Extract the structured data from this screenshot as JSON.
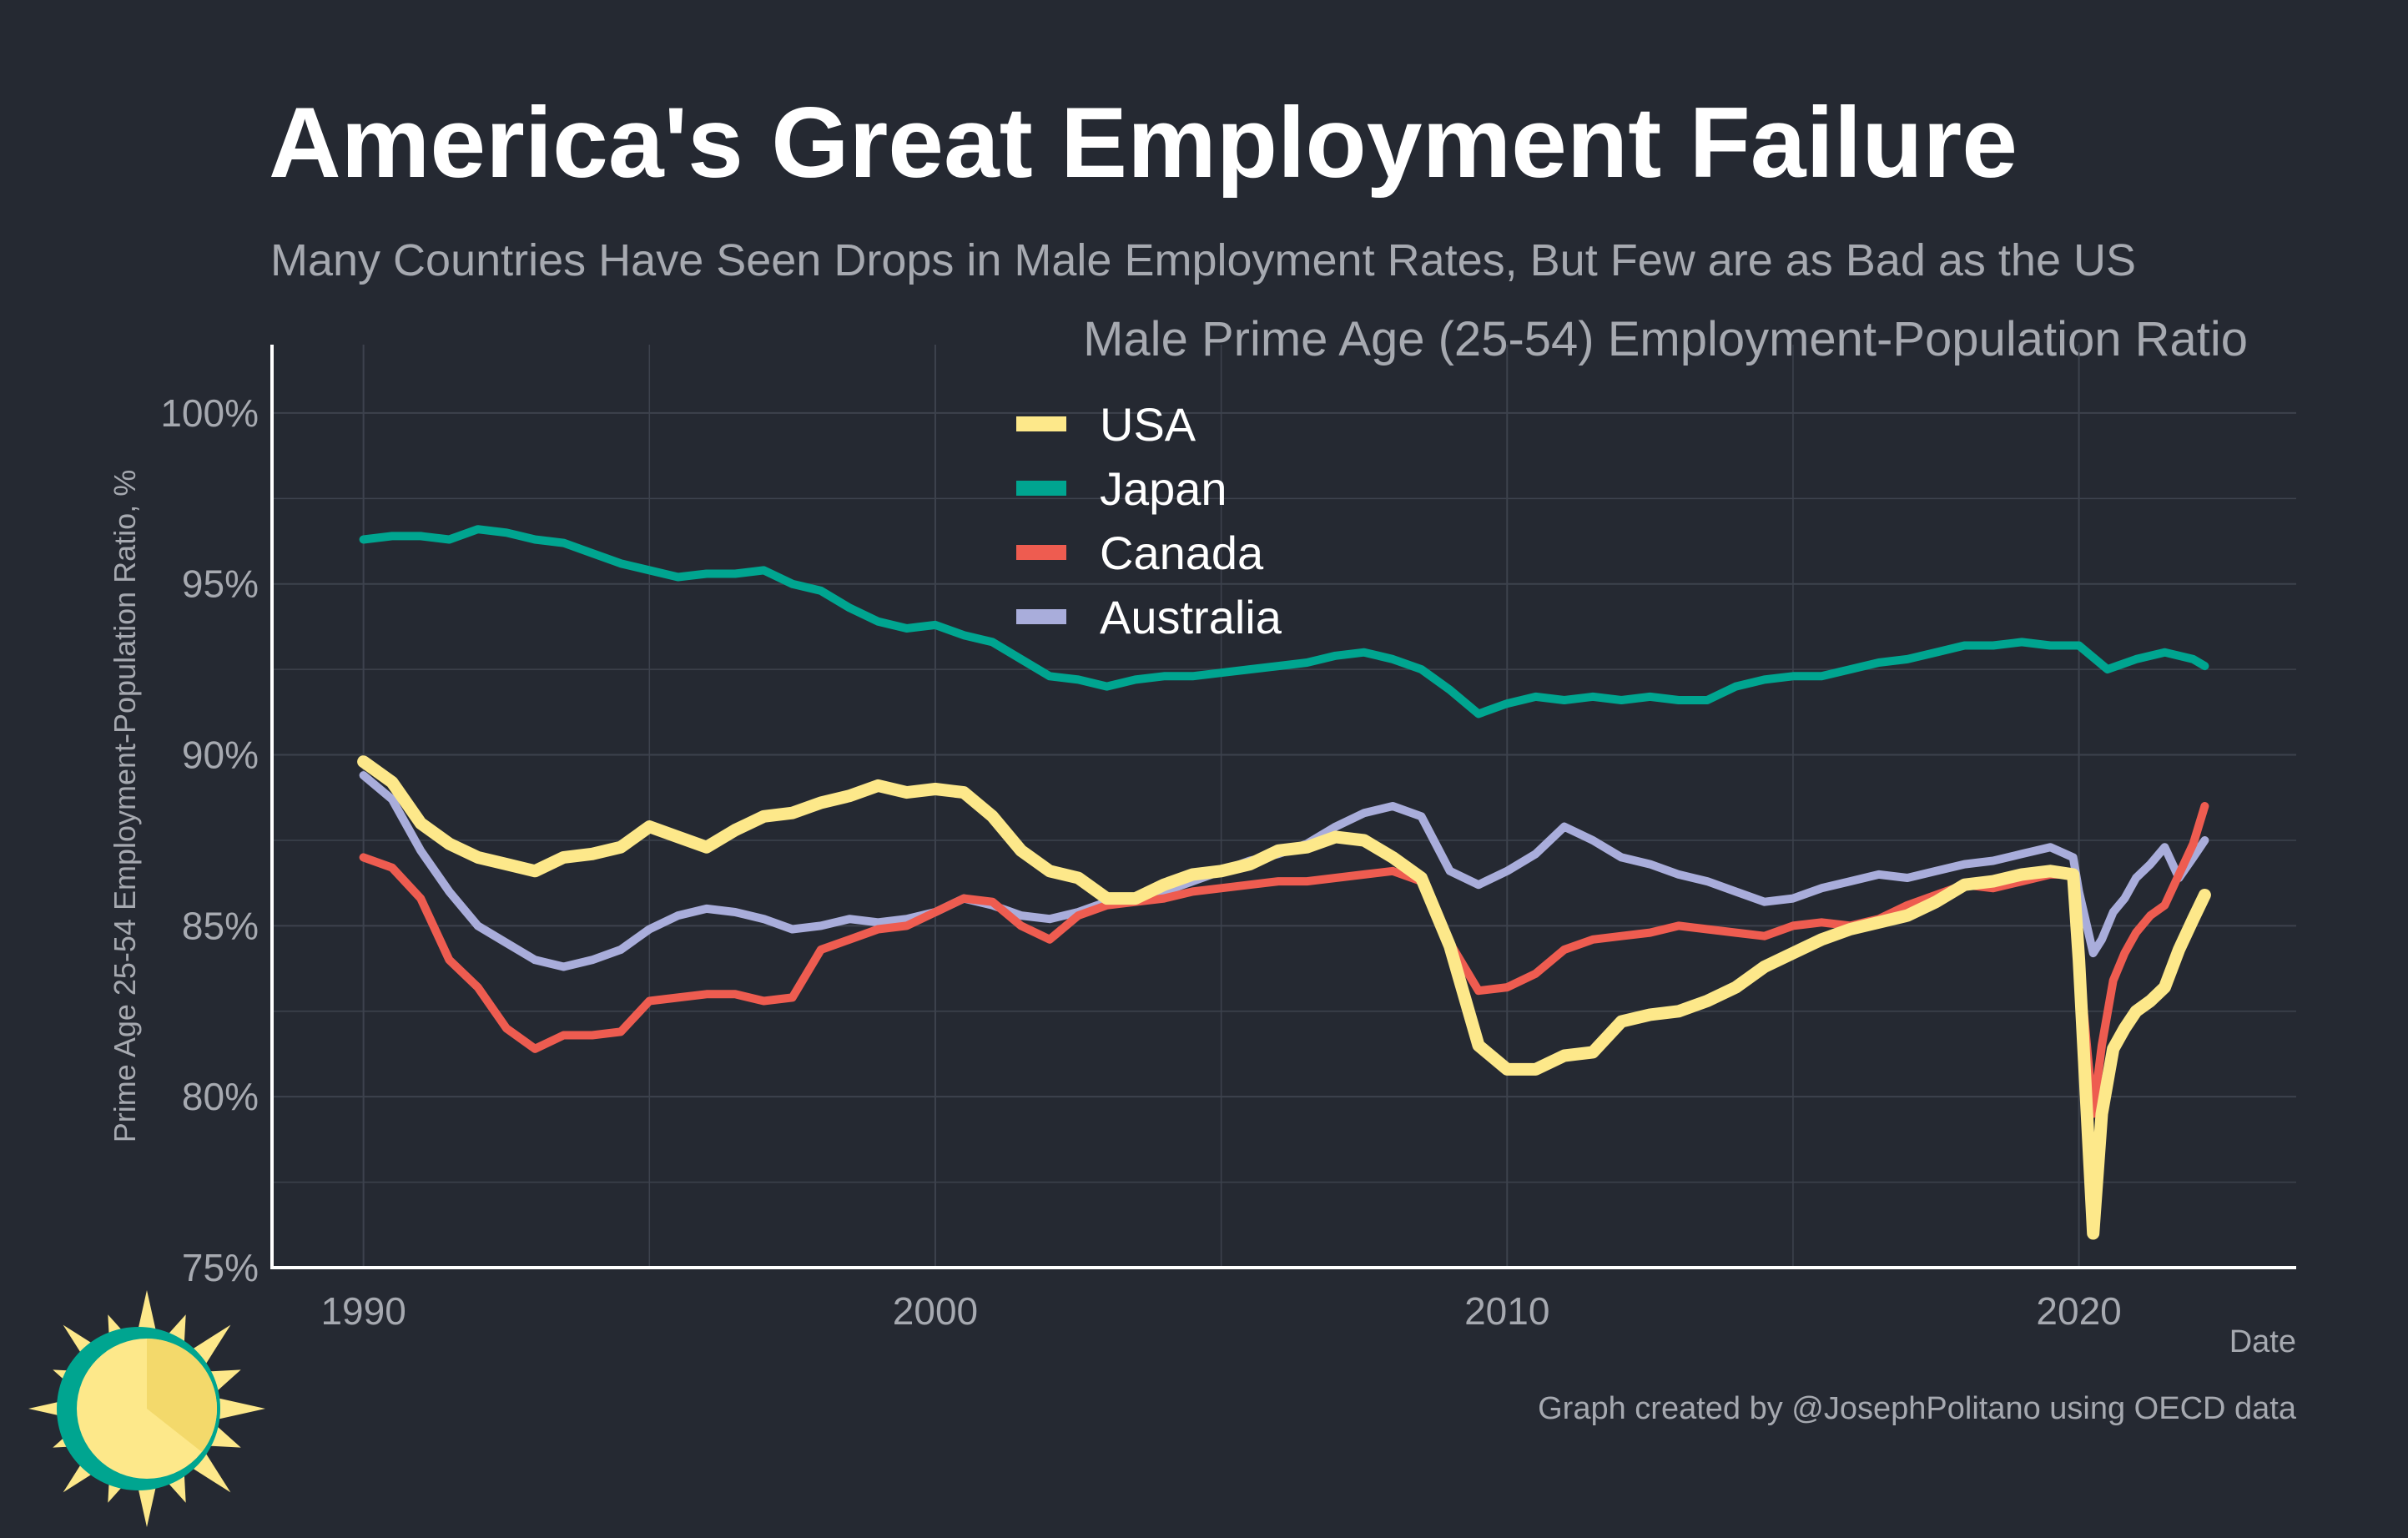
{
  "colors": {
    "background": "#252932",
    "title": "#ffffff",
    "muted": "#a6a9b0",
    "grid": "#3d424d",
    "axis": "#ffffff",
    "usa": "#fde88a",
    "japan": "#00a590",
    "canada": "#ee5c50",
    "australia": "#a9addb",
    "logo_sun": "#fde88a",
    "logo_sun_dark": "#f3d96b",
    "logo_ring": "#00a590"
  },
  "logo": {
    "icon": "sun-logo-icon"
  },
  "chart_data": {
    "type": "line",
    "title": "America's Great Employment Failure",
    "subtitle": "Many Countries Have Seen Drops in Male Employment Rates, But Few are as Bad as the US",
    "panel_title": "Male Prime Age (25-54) Employment-Population Ratio",
    "xlabel": "Date",
    "ylabel": "Prime Age 25-54 Employment-Population Ratio, %",
    "caption": "Graph created by @JosephPolitano using OECD data",
    "xlim": [
      1988.4,
      2023.8
    ],
    "ylim": [
      75,
      102
    ],
    "x_ticks": [
      1990,
      2000,
      2010,
      2020
    ],
    "x_tick_labels": [
      "1990",
      "2000",
      "2010",
      "2020"
    ],
    "y_ticks": [
      75,
      80,
      85,
      90,
      95,
      100
    ],
    "y_tick_labels": [
      "75%",
      "80%",
      "85%",
      "90%",
      "95%",
      "100%"
    ],
    "grid": true,
    "legend_position": "top-center",
    "series": [
      {
        "name": "USA",
        "color": "#fde88a",
        "x": [
          1990.0,
          1990.5,
          1991.0,
          1991.5,
          1992.0,
          1992.5,
          1993.0,
          1993.5,
          1994.0,
          1994.5,
          1995.0,
          1995.5,
          1996.0,
          1996.5,
          1997.0,
          1997.5,
          1998.0,
          1998.5,
          1999.0,
          1999.5,
          2000.0,
          2000.5,
          2001.0,
          2001.5,
          2002.0,
          2002.5,
          2003.0,
          2003.5,
          2004.0,
          2004.5,
          2005.0,
          2005.5,
          2006.0,
          2006.5,
          2007.0,
          2007.5,
          2008.0,
          2008.5,
          2009.0,
          2009.5,
          2010.0,
          2010.5,
          2011.0,
          2011.5,
          2012.0,
          2012.5,
          2013.0,
          2013.5,
          2014.0,
          2014.5,
          2015.0,
          2015.5,
          2016.0,
          2016.5,
          2017.0,
          2017.5,
          2018.0,
          2018.5,
          2019.0,
          2019.5,
          2019.9,
          2020.0,
          2020.25,
          2020.4,
          2020.6,
          2020.8,
          2021.0,
          2021.25,
          2021.5,
          2021.75,
          2022.0,
          2022.2
        ],
        "values": [
          89.8,
          89.2,
          88.0,
          87.4,
          87.0,
          86.8,
          86.6,
          87.0,
          87.1,
          87.3,
          87.9,
          87.6,
          87.3,
          87.8,
          88.2,
          88.3,
          88.6,
          88.8,
          89.1,
          88.9,
          89.0,
          88.9,
          88.2,
          87.2,
          86.6,
          86.4,
          85.8,
          85.8,
          86.2,
          86.5,
          86.6,
          86.8,
          87.2,
          87.3,
          87.6,
          87.5,
          87.0,
          86.4,
          84.4,
          81.5,
          80.8,
          80.8,
          81.2,
          81.3,
          82.2,
          82.4,
          82.5,
          82.8,
          83.2,
          83.8,
          84.2,
          84.6,
          84.9,
          85.1,
          85.3,
          85.7,
          86.2,
          86.3,
          86.5,
          86.6,
          86.5,
          84.0,
          76.0,
          79.5,
          81.4,
          82.0,
          82.5,
          82.8,
          83.2,
          84.3,
          85.2,
          85.9
        ]
      },
      {
        "name": "Japan",
        "color": "#00a590",
        "x": [
          1990.0,
          1990.5,
          1991.0,
          1991.5,
          1992.0,
          1992.5,
          1993.0,
          1993.5,
          1994.0,
          1994.5,
          1995.0,
          1995.5,
          1996.0,
          1996.5,
          1997.0,
          1997.5,
          1998.0,
          1998.5,
          1999.0,
          1999.5,
          2000.0,
          2000.5,
          2001.0,
          2001.5,
          2002.0,
          2002.5,
          2003.0,
          2003.5,
          2004.0,
          2004.5,
          2005.0,
          2005.5,
          2006.0,
          2006.5,
          2007.0,
          2007.5,
          2008.0,
          2008.5,
          2009.0,
          2009.5,
          2010.0,
          2010.5,
          2011.0,
          2011.5,
          2012.0,
          2012.5,
          2013.0,
          2013.5,
          2014.0,
          2014.5,
          2015.0,
          2015.5,
          2016.0,
          2016.5,
          2017.0,
          2017.5,
          2018.0,
          2018.5,
          2019.0,
          2019.5,
          2020.0,
          2020.5,
          2021.0,
          2021.5,
          2022.0,
          2022.2
        ],
        "values": [
          96.3,
          96.4,
          96.4,
          96.3,
          96.6,
          96.5,
          96.3,
          96.2,
          95.9,
          95.6,
          95.4,
          95.2,
          95.3,
          95.3,
          95.4,
          95.0,
          94.8,
          94.3,
          93.9,
          93.7,
          93.8,
          93.5,
          93.3,
          92.8,
          92.3,
          92.2,
          92.0,
          92.2,
          92.3,
          92.3,
          92.4,
          92.5,
          92.6,
          92.7,
          92.9,
          93.0,
          92.8,
          92.5,
          91.9,
          91.2,
          91.5,
          91.7,
          91.6,
          91.7,
          91.6,
          91.7,
          91.6,
          91.6,
          92.0,
          92.2,
          92.3,
          92.3,
          92.5,
          92.7,
          92.8,
          93.0,
          93.2,
          93.2,
          93.3,
          93.2,
          93.2,
          92.5,
          92.8,
          93.0,
          92.8,
          92.6
        ]
      },
      {
        "name": "Canada",
        "color": "#ee5c50",
        "x": [
          1990.0,
          1990.5,
          1991.0,
          1991.5,
          1992.0,
          1992.5,
          1993.0,
          1993.5,
          1994.0,
          1994.5,
          1995.0,
          1995.5,
          1996.0,
          1996.5,
          1997.0,
          1997.5,
          1998.0,
          1998.5,
          1999.0,
          1999.5,
          2000.0,
          2000.5,
          2001.0,
          2001.5,
          2002.0,
          2002.5,
          2003.0,
          2003.5,
          2004.0,
          2004.5,
          2005.0,
          2005.5,
          2006.0,
          2006.5,
          2007.0,
          2007.5,
          2008.0,
          2008.5,
          2009.0,
          2009.5,
          2010.0,
          2010.5,
          2011.0,
          2011.5,
          2012.0,
          2012.5,
          2013.0,
          2013.5,
          2014.0,
          2014.5,
          2015.0,
          2015.5,
          2016.0,
          2016.5,
          2017.0,
          2017.5,
          2018.0,
          2018.5,
          2019.0,
          2019.5,
          2019.9,
          2020.0,
          2020.25,
          2020.4,
          2020.6,
          2020.8,
          2021.0,
          2021.25,
          2021.5,
          2021.75,
          2022.0,
          2022.2
        ],
        "values": [
          87.0,
          86.7,
          85.8,
          84.0,
          83.2,
          82.0,
          81.4,
          81.8,
          81.8,
          81.9,
          82.8,
          82.9,
          83.0,
          83.0,
          82.8,
          82.9,
          84.3,
          84.6,
          84.9,
          85.0,
          85.4,
          85.8,
          85.7,
          85.0,
          84.6,
          85.3,
          85.6,
          85.7,
          85.8,
          86.0,
          86.1,
          86.2,
          86.3,
          86.3,
          86.4,
          86.5,
          86.6,
          86.3,
          84.5,
          83.1,
          83.2,
          83.6,
          84.3,
          84.6,
          84.7,
          84.8,
          85.0,
          84.9,
          84.8,
          84.7,
          85.0,
          85.1,
          85.0,
          85.2,
          85.6,
          85.9,
          86.2,
          86.1,
          86.3,
          86.5,
          86.5,
          84.0,
          79.5,
          81.5,
          83.4,
          84.2,
          84.8,
          85.3,
          85.6,
          86.5,
          87.4,
          88.5
        ]
      },
      {
        "name": "Australia",
        "color": "#a9addb",
        "x": [
          1990.0,
          1990.5,
          1991.0,
          1991.5,
          1992.0,
          1992.5,
          1993.0,
          1993.5,
          1994.0,
          1994.5,
          1995.0,
          1995.5,
          1996.0,
          1996.5,
          1997.0,
          1997.5,
          1998.0,
          1998.5,
          1999.0,
          1999.5,
          2000.0,
          2000.5,
          2001.0,
          2001.5,
          2002.0,
          2002.5,
          2003.0,
          2003.5,
          2004.0,
          2004.5,
          2005.0,
          2005.5,
          2006.0,
          2006.5,
          2007.0,
          2007.5,
          2008.0,
          2008.5,
          2009.0,
          2009.5,
          2010.0,
          2010.5,
          2011.0,
          2011.5,
          2012.0,
          2012.5,
          2013.0,
          2013.5,
          2014.0,
          2014.5,
          2015.0,
          2015.5,
          2016.0,
          2016.5,
          2017.0,
          2017.5,
          2018.0,
          2018.5,
          2019.0,
          2019.5,
          2019.9,
          2020.0,
          2020.25,
          2020.4,
          2020.6,
          2020.8,
          2021.0,
          2021.25,
          2021.5,
          2021.75,
          2022.0,
          2022.2
        ],
        "values": [
          89.4,
          88.7,
          87.2,
          86.0,
          85.0,
          84.5,
          84.0,
          83.8,
          84.0,
          84.3,
          84.9,
          85.3,
          85.5,
          85.4,
          85.2,
          84.9,
          85.0,
          85.2,
          85.1,
          85.2,
          85.4,
          85.8,
          85.6,
          85.3,
          85.2,
          85.4,
          85.7,
          85.8,
          86.0,
          86.3,
          86.6,
          86.9,
          87.1,
          87.4,
          87.9,
          88.3,
          88.5,
          88.2,
          86.6,
          86.2,
          86.6,
          87.1,
          87.9,
          87.5,
          87.0,
          86.8,
          86.5,
          86.3,
          86.0,
          85.7,
          85.8,
          86.1,
          86.3,
          86.5,
          86.4,
          86.6,
          86.8,
          86.9,
          87.1,
          87.3,
          87.0,
          86.0,
          84.2,
          84.6,
          85.4,
          85.8,
          86.4,
          86.8,
          87.3,
          86.4,
          87.0,
          87.5
        ]
      }
    ]
  }
}
